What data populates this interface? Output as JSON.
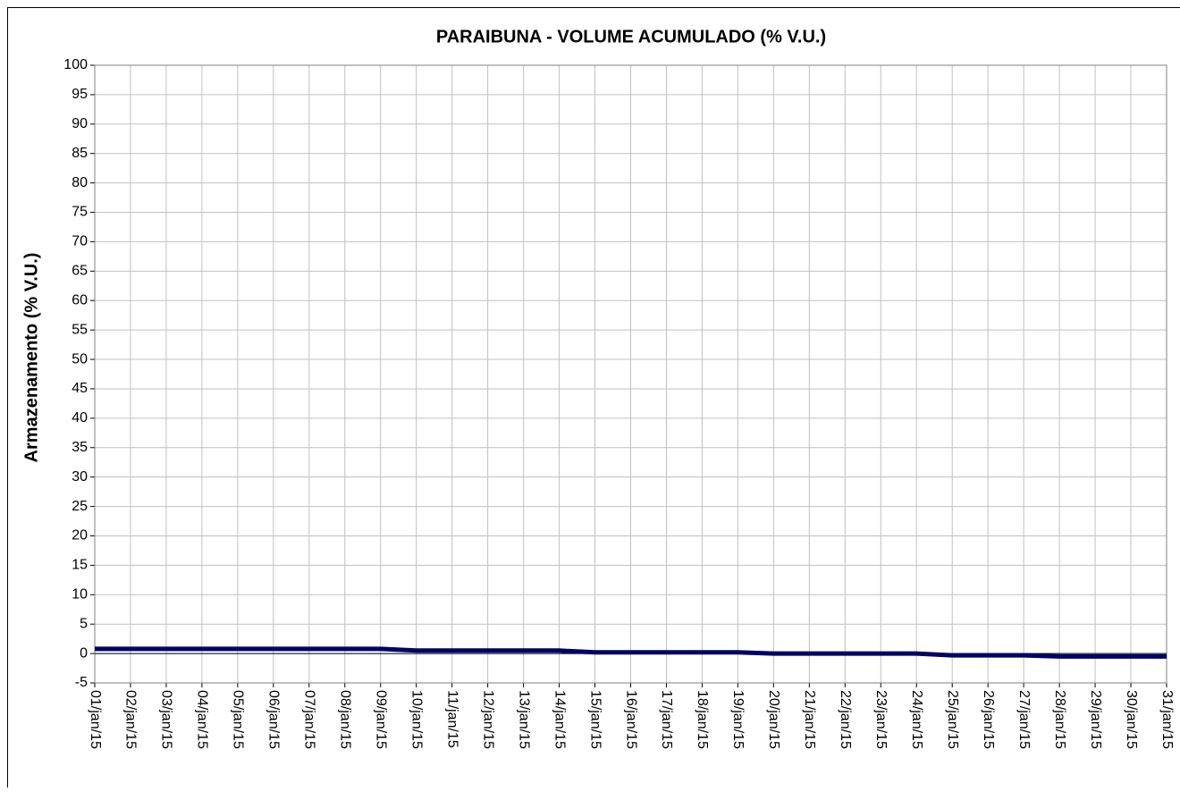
{
  "chart_data": {
    "type": "line",
    "title": "PARAIBUNA - VOLUME ACUMULADO (% V.U.)",
    "y_label": "Armazenamento (% V.U.)",
    "categories": [
      "01/jan/15",
      "02/jan/15",
      "03/jan/15",
      "04/jan/15",
      "05/jan/15",
      "06/jan/15",
      "07/jan/15",
      "08/jan/15",
      "09/jan/15",
      "10/jan/15",
      "11/jan/15",
      "12/jan/15",
      "13/jan/15",
      "14/jan/15",
      "15/jan/15",
      "16/jan/15",
      "17/jan/15",
      "18/jan/15",
      "19/jan/15",
      "20/jan/15",
      "21/jan/15",
      "22/jan/15",
      "23/jan/15",
      "24/jan/15",
      "25/jan/15",
      "26/jan/15",
      "27/jan/15",
      "28/jan/15",
      "29/jan/15",
      "30/jan/15",
      "31/jan/15"
    ],
    "series": [
      {
        "name": "Paraibuna",
        "color": "#000066",
        "values": [
          0.8,
          0.8,
          0.8,
          0.8,
          0.8,
          0.8,
          0.8,
          0.8,
          0.8,
          0.5,
          0.5,
          0.5,
          0.5,
          0.5,
          0.2,
          0.2,
          0.2,
          0.2,
          0.2,
          0.0,
          0.0,
          0.0,
          0.0,
          0.0,
          -0.3,
          -0.3,
          -0.3,
          -0.5,
          -0.5,
          -0.5,
          -0.5
        ]
      }
    ],
    "ylim": [
      -5,
      100
    ],
    "yticks": [
      -5,
      0,
      5,
      10,
      15,
      20,
      25,
      30,
      35,
      40,
      45,
      50,
      55,
      60,
      65,
      70,
      75,
      80,
      85,
      90,
      95,
      100
    ],
    "grid": true
  }
}
